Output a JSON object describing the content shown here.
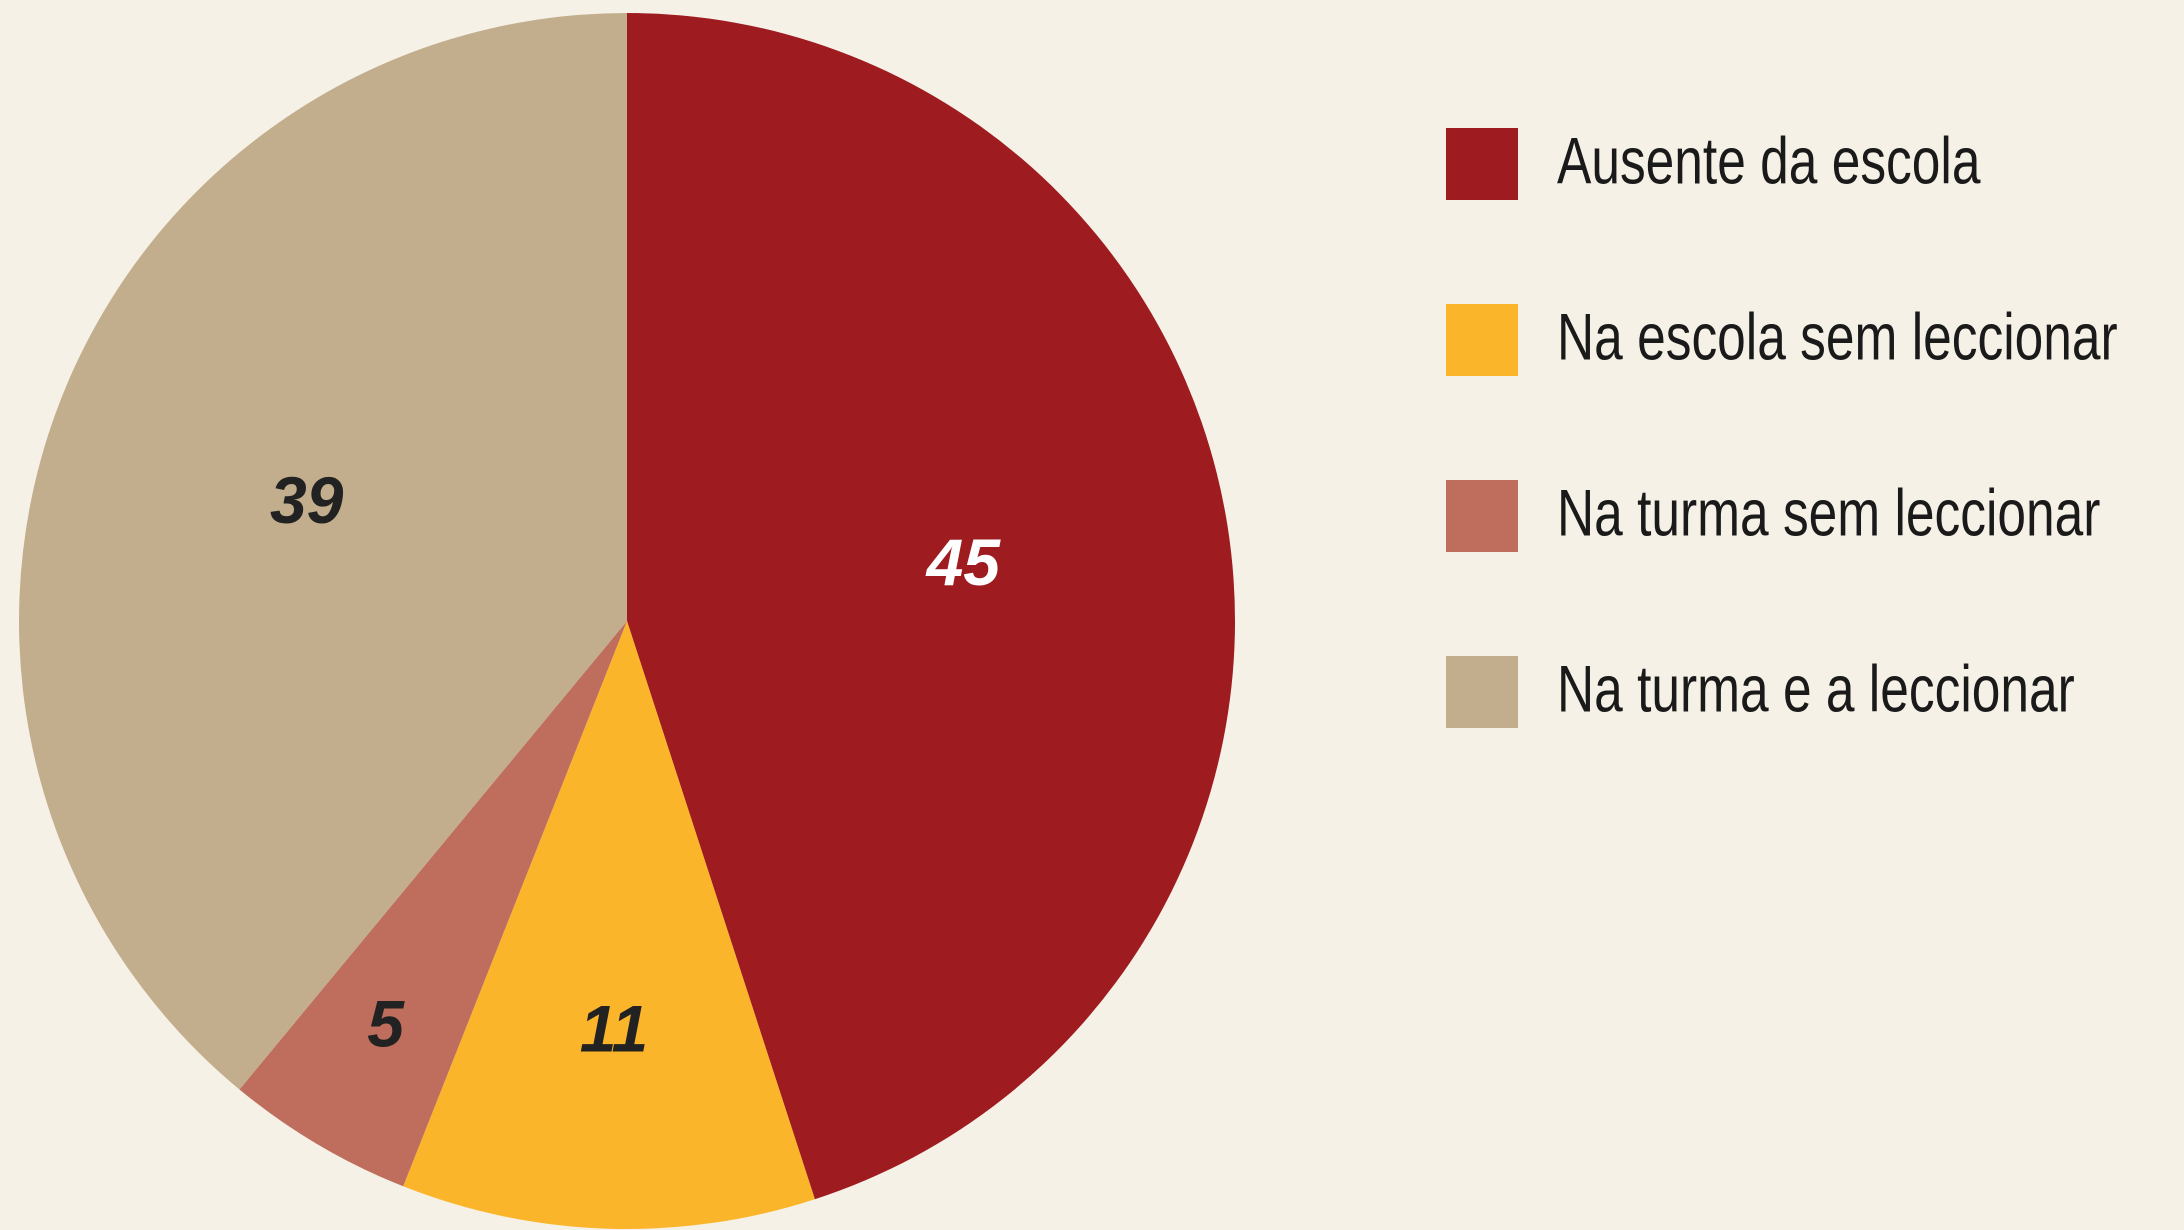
{
  "chart_data": {
    "type": "pie",
    "categories": [
      "Ausente da escola",
      "Na escola sem leccionar",
      "Na turma sem leccionar",
      "Na turma e a leccionar"
    ],
    "values": [
      45,
      11,
      5,
      39
    ],
    "colors": [
      "#9e1b20",
      "#fbb52a",
      "#bf6e5e",
      "#c2ae8d"
    ],
    "legend": "right"
  }
}
